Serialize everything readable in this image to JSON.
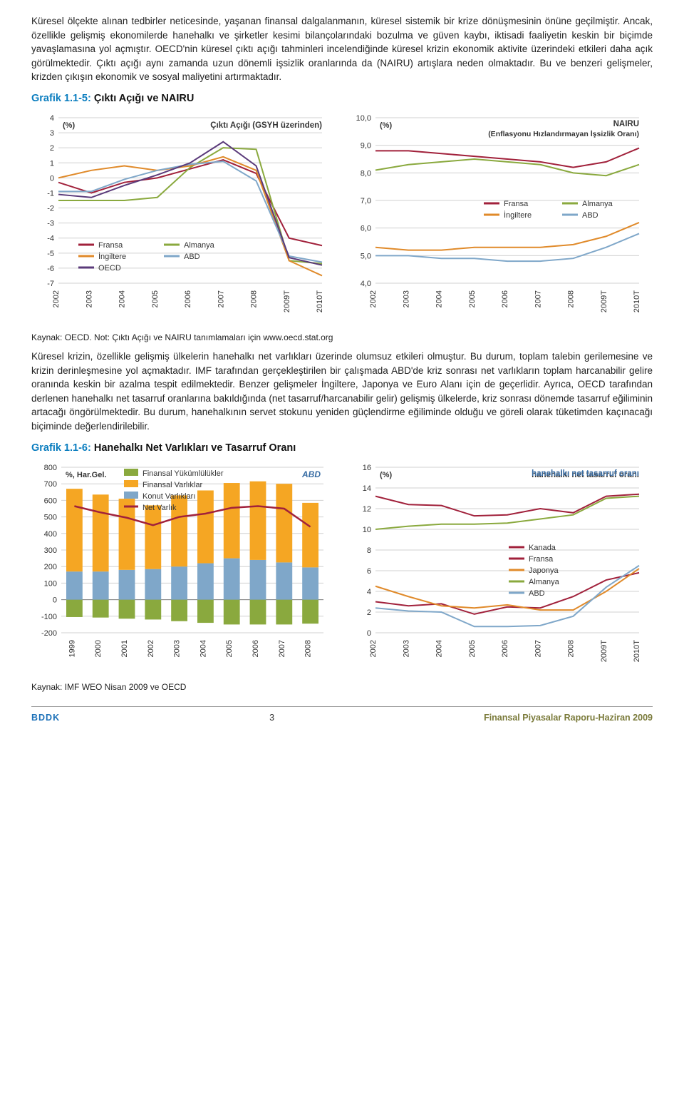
{
  "paragraphs": {
    "p1": "Küresel ölçekte alınan tedbirler neticesinde, yaşanan finansal dalgalanmanın, küresel sistemik bir krize dönüşmesinin önüne geçilmiştir. Ancak, özellikle gelişmiş ekonomilerde hanehalkı ve şirketler kesimi bilançolarındaki bozulma ve güven kaybı, iktisadi faaliyetin keskin bir biçimde yavaşlamasına yol açmıştır. OECD'nin küresel çıktı açığı tahminleri incelendiğinde küresel krizin ekonomik aktivite üzerindeki etkileri daha açık görülmektedir. Çıktı açığı aynı zamanda uzun dönemli işsizlik oranlarında da (NAIRU) artışlara neden olmaktadır. Bu ve benzeri gelişmeler, krizden çıkışın ekonomik ve sosyal maliyetini artırmaktadır.",
    "p2": "Küresel krizin, özellikle gelişmiş ülkelerin hanehalkı net varlıkları üzerinde olumsuz etkileri olmuştur. Bu durum, toplam talebin gerilemesine ve krizin derinleşmesine yol açmaktadır. IMF tarafından gerçekleştirilen bir çalışmada ABD'de kriz sonrası net varlıkların toplam harcanabilir gelire oranında keskin bir azalma tespit edilmektedir. Benzer gelişmeler İngiltere, Japonya ve Euro Alanı için de geçerlidir. Ayrıca, OECD tarafından derlenen hanehalkı net tasarruf oranlarına bakıldığında (net tasarruf/harcanabilir gelir) gelişmiş ülkelerde, kriz sonrası dönemde tasarruf eğiliminin artacağı öngörülmektedir. Bu durum, hanehalkının servet stokunu yeniden güçlendirme eğiliminde olduğu ve göreli olarak tüketimden kaçınacağı biçiminde değerlendirilebilir."
  },
  "chart_titles": {
    "g15_prefix": "Grafik 1.1-5:",
    "g15_name": "Çıktı Açığı ve NAIRU",
    "g16_prefix": "Grafik 1.1-6:",
    "g16_name": "Hanehalkı Net Varlıkları ve Tasarruf Oranı"
  },
  "sources": {
    "s1": "Kaynak: OECD. Not: Çıktı Açığı ve NAIRU tanımlamaları için www.oecd.stat.org",
    "s2": "Kaynak: IMF WEO Nisan 2009 ve OECD"
  },
  "footer": {
    "left": "BDDK",
    "mid": "3",
    "right": "Finansal Piyasalar Raporu-Haziran 2009"
  },
  "colors": {
    "fransa": "#a1213b",
    "almanya": "#8aa93e",
    "ingiltere": "#e08a2a",
    "abd": "#7fa7c9",
    "oecd": "#5a3a7a",
    "kanada": "#a1213b",
    "japonya": "#e08a2a",
    "grid": "#d0d0d0",
    "axis": "#808080",
    "text": "#333333",
    "title_accent": "#0a7dbf",
    "bar_green": "#8aa93e",
    "bar_orange": "#f5a623",
    "bar_blue": "#7fa7c9",
    "net_line": "#a1213b",
    "abd_label": "#3a6ea5"
  },
  "chart_output_gap": {
    "type": "line",
    "title_right": "Çıktı Açığı (GSYH üzerinden)",
    "ylabel_unit": "(%)",
    "ylim": [
      -7,
      4
    ],
    "ytick_step": 1,
    "x_labels": [
      "2002",
      "2003",
      "2004",
      "2005",
      "2006",
      "2007",
      "2008",
      "2009T",
      "2010T"
    ],
    "series": {
      "Fransa": [
        -0.3,
        -1.0,
        -0.3,
        0.0,
        0.6,
        1.2,
        0.3,
        -4.0,
        -4.5
      ],
      "Almanya": [
        -1.5,
        -1.5,
        -1.5,
        -1.3,
        0.7,
        2.0,
        1.9,
        -5.5,
        -5.7
      ],
      "İngiltere": [
        0.0,
        0.5,
        0.8,
        0.5,
        0.8,
        1.4,
        0.5,
        -5.5,
        -6.5
      ],
      "ABD": [
        -0.9,
        -0.9,
        -0.1,
        0.5,
        0.9,
        1.1,
        -0.2,
        -5.2,
        -5.6
      ],
      "OECD": [
        -1.1,
        -1.3,
        -0.5,
        0.2,
        1.0,
        2.4,
        0.8,
        -5.3,
        -5.8
      ]
    },
    "legend_order": [
      "Fransa",
      "Almanya",
      "İngiltere",
      "ABD",
      "OECD"
    ]
  },
  "chart_nairu": {
    "type": "line",
    "title_right_1": "NAIRU",
    "title_right_2": "(Enflasyonu Hızlandırmayan İşsizlik Oranı)",
    "ylabel_unit": "(%)",
    "ylim": [
      4,
      10
    ],
    "ytick_step": 1,
    "x_labels": [
      "2002",
      "2003",
      "2004",
      "2005",
      "2006",
      "2007",
      "2008",
      "2009T",
      "2010T"
    ],
    "series": {
      "Fransa": [
        8.8,
        8.8,
        8.7,
        8.6,
        8.5,
        8.4,
        8.2,
        8.4,
        8.9
      ],
      "Almanya": [
        8.1,
        8.3,
        8.4,
        8.5,
        8.4,
        8.3,
        8.0,
        7.9,
        8.3
      ],
      "İngiltere": [
        5.3,
        5.2,
        5.2,
        5.3,
        5.3,
        5.3,
        5.4,
        5.7,
        6.2
      ],
      "ABD": [
        5.0,
        5.0,
        4.9,
        4.9,
        4.8,
        4.8,
        4.9,
        5.3,
        5.8
      ]
    },
    "legend_order": [
      "Fransa",
      "Almanya",
      "İngiltere",
      "ABD"
    ]
  },
  "chart_networth": {
    "type": "stacked-bar+line",
    "ylabel_unit": "%, Har.Gel.",
    "country_label": "ABD",
    "ylim": [
      -200,
      800
    ],
    "ytick_step": 100,
    "x_labels": [
      "1999",
      "2000",
      "2001",
      "2002",
      "2003",
      "2004",
      "2005",
      "2006",
      "2007",
      "2008"
    ],
    "legend": {
      "fy": "Finansal Yükümlülükler",
      "fv": "Finansal Varlıklar",
      "kv": "Konut Varlıkları",
      "nv": "Net Varlık"
    },
    "bars": {
      "Finansal Yükümlülükler": [
        -105,
        -108,
        -115,
        -120,
        -130,
        -140,
        -150,
        -150,
        -150,
        -145
      ],
      "Konut Varlıkları": [
        170,
        170,
        180,
        185,
        200,
        220,
        250,
        240,
        225,
        195
      ],
      "Finansal Varlıklar": [
        500,
        465,
        430,
        385,
        430,
        440,
        455,
        475,
        475,
        390
      ]
    },
    "net_line": [
      565,
      527,
      495,
      450,
      500,
      520,
      555,
      565,
      550,
      440
    ]
  },
  "chart_savings": {
    "type": "line",
    "title_right": "hanehalkı net tasarruf oranı",
    "ylabel_unit": "(%)",
    "ylim": [
      0,
      16
    ],
    "ytick_step": 2,
    "x_labels": [
      "2002",
      "2003",
      "2004",
      "2005",
      "2006",
      "2007",
      "2008",
      "2009T",
      "2010T"
    ],
    "series": {
      "Kanada": [
        3.0,
        2.6,
        2.8,
        1.8,
        2.5,
        2.4,
        3.5,
        5.1,
        5.8
      ],
      "Fransa": [
        13.2,
        12.4,
        12.3,
        11.3,
        11.4,
        12.0,
        11.6,
        13.2,
        13.4
      ],
      "Japonya": [
        4.5,
        3.5,
        2.6,
        2.4,
        2.7,
        2.2,
        2.2,
        4.0,
        6.2
      ],
      "Almanya": [
        10.0,
        10.3,
        10.5,
        10.5,
        10.6,
        11.0,
        11.4,
        13.0,
        13.2
      ],
      "ABD": [
        2.4,
        2.1,
        2.0,
        0.6,
        0.6,
        0.7,
        1.6,
        4.4,
        6.5
      ]
    },
    "legend_order": [
      "Kanada",
      "Fransa",
      "Japonya",
      "Almanya",
      "ABD"
    ]
  }
}
